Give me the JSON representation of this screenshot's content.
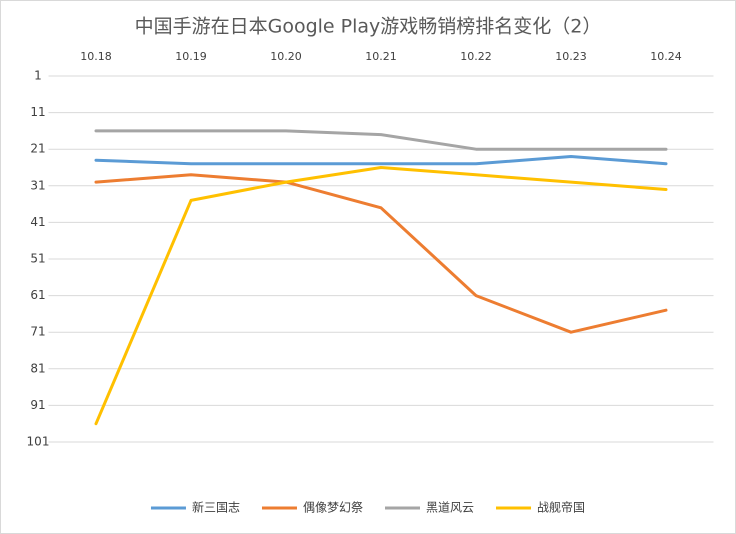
{
  "chart_data": {
    "type": "line",
    "title": "中国手游在日本Google Play游戏畅销榜排名变化（2）",
    "categories": [
      "10.18",
      "10.19",
      "10.20",
      "10.21",
      "10.22",
      "10.23",
      "10.24"
    ],
    "series": [
      {
        "name": "新三国志",
        "color": "#5b9bd5",
        "values": [
          24,
          25,
          25,
          25,
          25,
          23,
          25
        ]
      },
      {
        "name": "偶像梦幻祭",
        "color": "#ed7d31",
        "values": [
          30,
          28,
          30,
          37,
          61,
          71,
          65
        ]
      },
      {
        "name": "黑道风云",
        "color": "#a5a5a5",
        "values": [
          16,
          16,
          16,
          17,
          21,
          21,
          21
        ]
      },
      {
        "name": "战舰帝国",
        "color": "#ffc000",
        "values": [
          96,
          35,
          30,
          26,
          28,
          30,
          32
        ]
      }
    ],
    "ylim": [
      1,
      101
    ],
    "yticks": [
      1,
      11,
      21,
      31,
      41,
      51,
      61,
      71,
      81,
      91,
      101
    ],
    "reversed": true,
    "grid": true,
    "legend": "bottom"
  }
}
